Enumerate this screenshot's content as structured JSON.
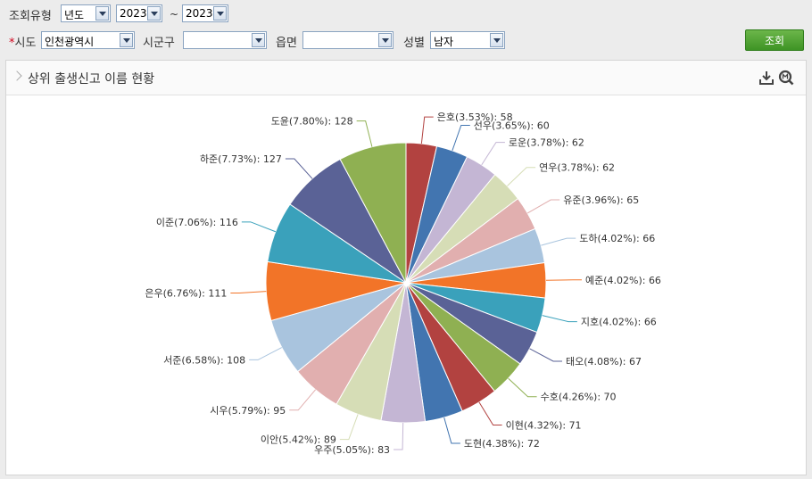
{
  "filters": {
    "type_label": "조회유형",
    "type_value": "년도",
    "year_from": "2023",
    "tilde": "~",
    "year_to": "2023",
    "required_mark": "*",
    "sido_label": "시도",
    "sido_value": "인천광역시",
    "sigungu_label": "시군구",
    "sigungu_value": "",
    "eupmyeon_label": "읍면",
    "eupmyeon_value": "",
    "gender_label": "성별",
    "gender_value": "남자",
    "search_button": "조회"
  },
  "panel": {
    "title": "상위 출생신고 이름 현황",
    "icons": [
      "download-icon",
      "zoom-icon"
    ]
  },
  "chart_data": {
    "type": "pie",
    "start_angle_deg": 0,
    "direction": "clockwise",
    "slices": [
      {
        "name": "은호",
        "pct": "3.53%",
        "value": 58,
        "color": "#b24240"
      },
      {
        "name": "선우",
        "pct": "3.65%",
        "value": 60,
        "color": "#4275b0"
      },
      {
        "name": "로운",
        "pct": "3.78%",
        "value": 62,
        "color": "#c4b6d4"
      },
      {
        "name": "연우",
        "pct": "3.78%",
        "value": 62,
        "color": "#d6ddb6"
      },
      {
        "name": "유준",
        "pct": "3.96%",
        "value": 65,
        "color": "#e1afaf"
      },
      {
        "name": "도하",
        "pct": "4.02%",
        "value": 66,
        "color": "#a9c4de"
      },
      {
        "name": "예준",
        "pct": "4.02%",
        "value": 66,
        "color": "#f27428"
      },
      {
        "name": "지호",
        "pct": "4.02%",
        "value": 66,
        "color": "#3aa1bb"
      },
      {
        "name": "태오",
        "pct": "4.08%",
        "value": 67,
        "color": "#5a6296"
      },
      {
        "name": "수호",
        "pct": "4.26%",
        "value": 70,
        "color": "#8fb052"
      },
      {
        "name": "이현",
        "pct": "4.32%",
        "value": 71,
        "color": "#b24240"
      },
      {
        "name": "도현",
        "pct": "4.38%",
        "value": 72,
        "color": "#4275b0"
      },
      {
        "name": "우주",
        "pct": "5.05%",
        "value": 83,
        "color": "#c4b6d4"
      },
      {
        "name": "이안",
        "pct": "5.42%",
        "value": 89,
        "color": "#d6ddb6"
      },
      {
        "name": "시우",
        "pct": "5.79%",
        "value": 95,
        "color": "#e1afaf"
      },
      {
        "name": "서준",
        "pct": "6.58%",
        "value": 108,
        "color": "#a9c4de"
      },
      {
        "name": "은우",
        "pct": "6.76%",
        "value": 111,
        "color": "#f27428"
      },
      {
        "name": "이준",
        "pct": "7.06%",
        "value": 116,
        "color": "#3aa1bb"
      },
      {
        "name": "하준",
        "pct": "7.73%",
        "value": 127,
        "color": "#5a6296"
      },
      {
        "name": "도윤",
        "pct": "7.80%",
        "value": 128,
        "color": "#8fb052"
      }
    ]
  }
}
